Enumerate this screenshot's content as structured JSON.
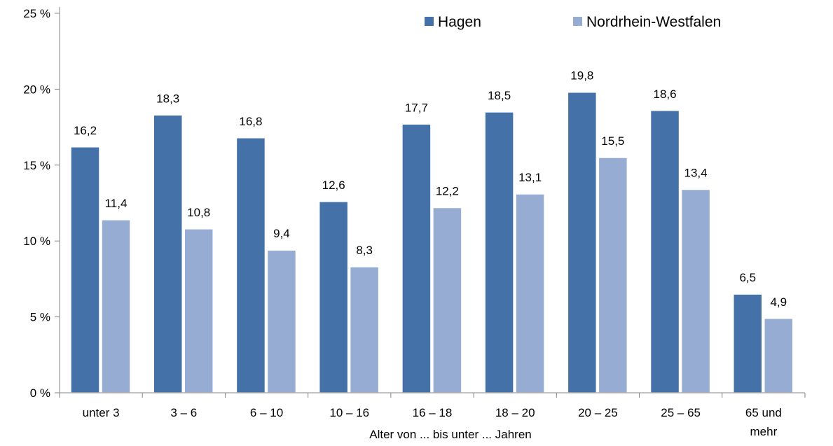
{
  "chart_data": {
    "type": "bar",
    "xlabel": "Alter von ... bis unter ... Jahren",
    "ylabel": "",
    "ylim": [
      0,
      25
    ],
    "yticks": [
      "0 %",
      "5 %",
      "10 %",
      "15 %",
      "20 %",
      "25 %"
    ],
    "grid": false,
    "legend_position": "top-right",
    "categories": [
      [
        "unter 3"
      ],
      [
        "3 –  6"
      ],
      [
        "6 – 10"
      ],
      [
        "10 – 16"
      ],
      [
        "16 – 18"
      ],
      [
        "18 – 20"
      ],
      [
        "20 – 25"
      ],
      [
        "25 – 65"
      ],
      [
        "65 und",
        "mehr"
      ]
    ],
    "series": [
      {
        "name": "Hagen",
        "color": "#4472a8",
        "values": [
          16.2,
          18.3,
          16.8,
          12.6,
          17.7,
          18.5,
          19.8,
          18.6,
          6.5
        ],
        "labels": [
          "16,2",
          "18,3",
          "16,8",
          "12,6",
          "17,7",
          "18,5",
          "19,8",
          "18,6",
          "6,5"
        ]
      },
      {
        "name": "Nordrhein-Westfalen",
        "color": "#97acd3",
        "values": [
          11.4,
          10.8,
          9.4,
          8.3,
          12.2,
          13.1,
          15.5,
          13.4,
          4.9
        ],
        "labels": [
          "11,4",
          "10,8",
          "9,4",
          "8,3",
          "12,2",
          "13,1",
          "15,5",
          "13,4",
          "4,9"
        ]
      }
    ]
  }
}
